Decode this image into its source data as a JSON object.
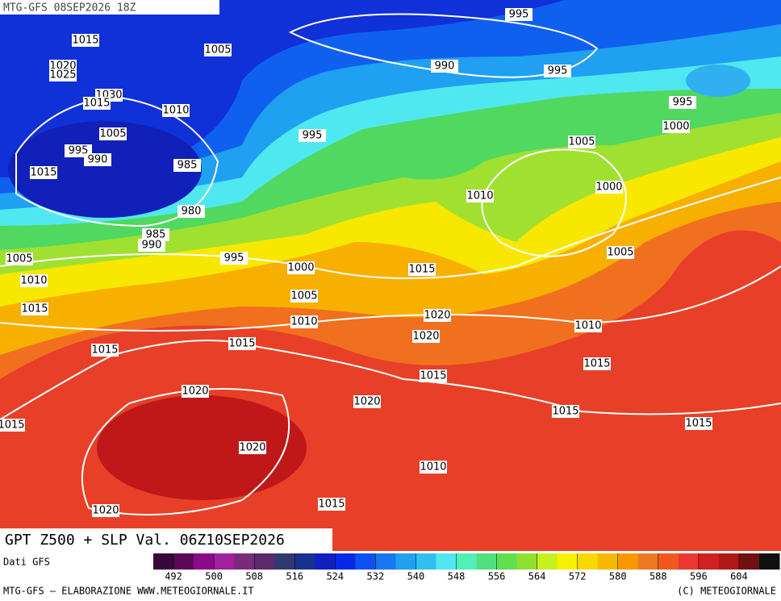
{
  "header": {
    "title": "MTG-GFS 08SEP2026 18Z"
  },
  "map": {
    "isobar_labels": [
      995,
      1015,
      1005,
      990,
      995,
      1020,
      1025,
      1030,
      1015,
      995,
      1010,
      1000,
      1005,
      995,
      1005,
      995,
      990,
      985,
      1015,
      1010,
      1000,
      980,
      985,
      990,
      995,
      1005,
      1000,
      1015,
      1005,
      1010,
      1005,
      1015,
      1020,
      1010,
      1010,
      1020,
      1015,
      1015,
      1015,
      1015,
      1020,
      1020,
      1015,
      1015,
      1015,
      1020,
      1010,
      1015,
      1020
    ]
  },
  "caption": "GPT Z500 + SLP Val. 06Z10SEP2026",
  "legend": {
    "source": "Dati GFS",
    "ticks": [
      492,
      500,
      508,
      516,
      524,
      532,
      540,
      548,
      556,
      564,
      572,
      580,
      588,
      596,
      604
    ],
    "colors": [
      "#3a0838",
      "#5a0858",
      "#8a0a8a",
      "#a020a0",
      "#7a2a7a",
      "#5a2a6a",
      "#303870",
      "#183090",
      "#1020c0",
      "#0828e8",
      "#1050f0",
      "#1878f0",
      "#20a0f0",
      "#30c0f0",
      "#50e8f0",
      "#50f0b8",
      "#50e080",
      "#60e050",
      "#90e030",
      "#c8f020",
      "#f8f000",
      "#f8d800",
      "#f8b800",
      "#f89800",
      "#f07820",
      "#f05820",
      "#e83830",
      "#d02020",
      "#b01818",
      "#701010",
      "#101010"
    ]
  },
  "footer": {
    "left": "MTG-GFS — ELABORAZIONE WWW.METEOGIORNALE.IT",
    "right": "(C) METEOGIORNALE"
  }
}
